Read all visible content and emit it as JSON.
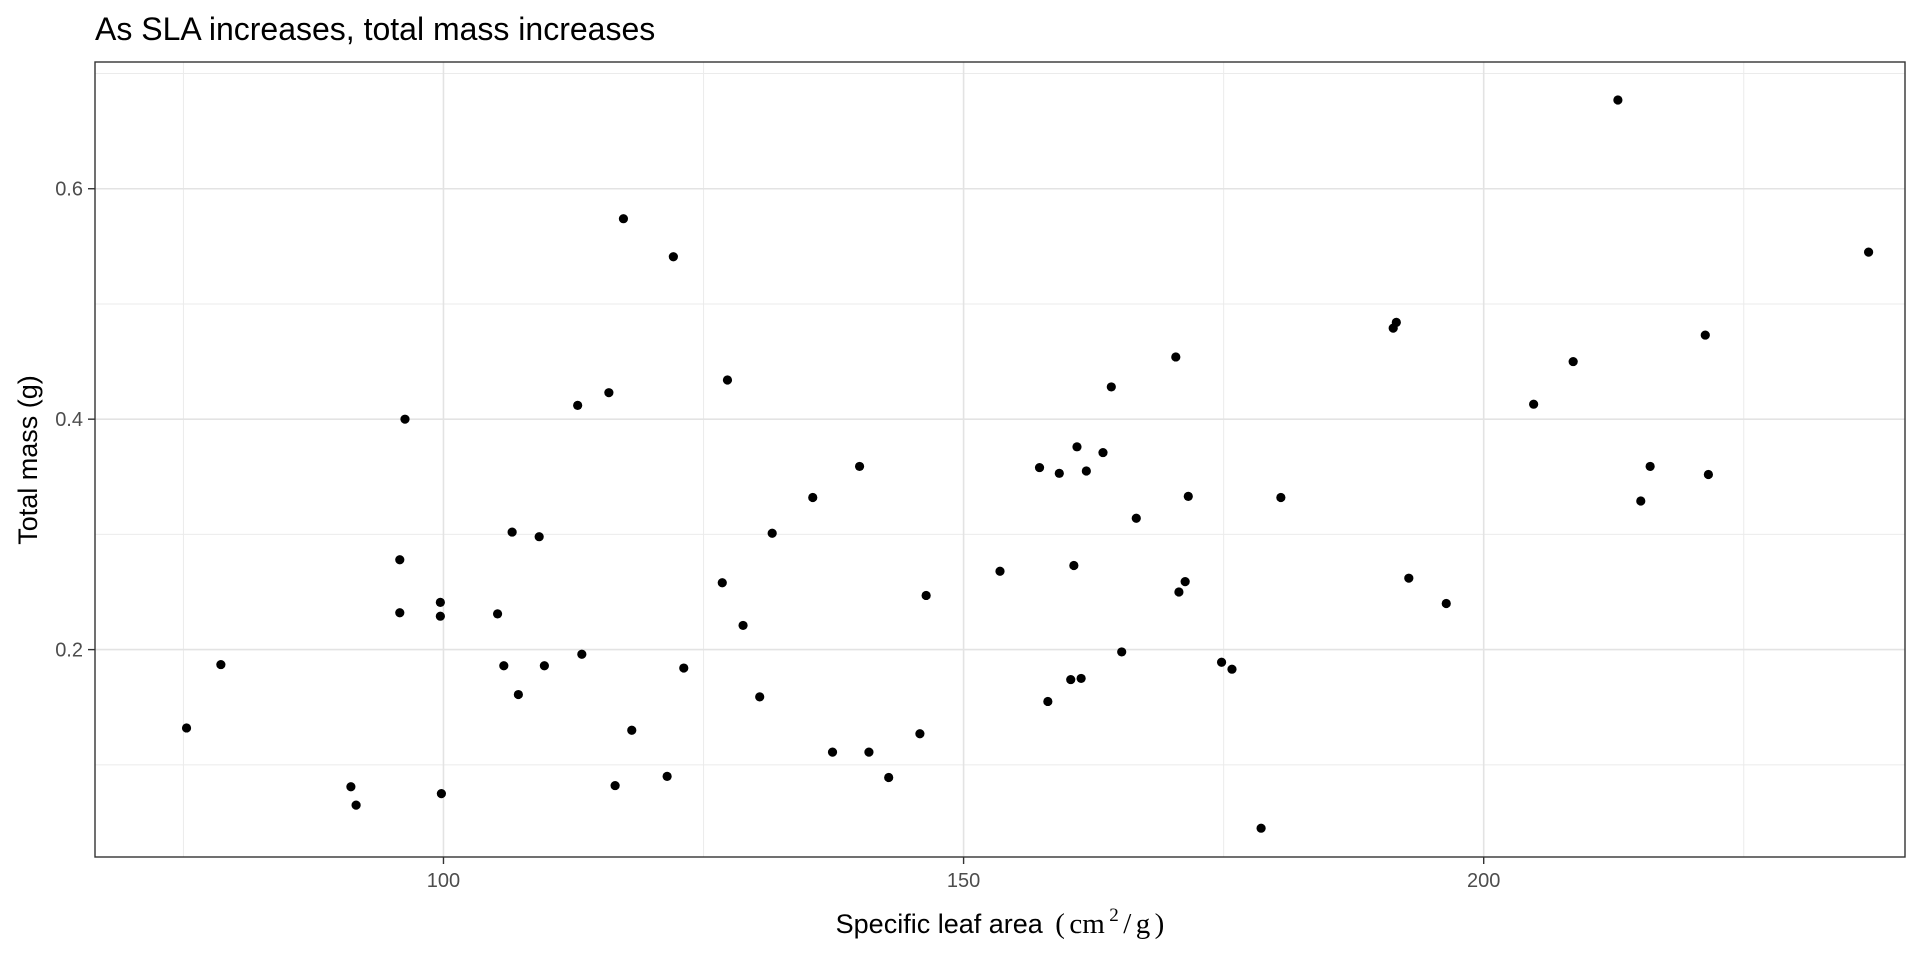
{
  "chart_data": {
    "type": "scatter",
    "title": "As SLA increases, total mass increases",
    "xlabel": "Specific leaf area",
    "xlabel_unit": {
      "open": "(",
      "base": "cm",
      "exponent": "2",
      "slash": "/",
      "denominator": "g",
      "close": ")"
    },
    "ylabel": "Total mass (g)",
    "xlim": [
      66.5,
      240.5
    ],
    "ylim": [
      0.02,
      0.71
    ],
    "x_ticks": [
      100,
      150,
      200
    ],
    "y_ticks": [
      0.2,
      0.4,
      0.6
    ],
    "x_tick_labels": [
      "100",
      "150",
      "200"
    ],
    "y_tick_labels": [
      "0.2",
      "0.4",
      "0.6"
    ],
    "grid": true,
    "legend": "none",
    "point_color": "#000000",
    "points": [
      {
        "x": 75.3,
        "y": 0.132
      },
      {
        "x": 78.6,
        "y": 0.187
      },
      {
        "x": 91.1,
        "y": 0.081
      },
      {
        "x": 91.6,
        "y": 0.065
      },
      {
        "x": 95.8,
        "y": 0.278
      },
      {
        "x": 95.8,
        "y": 0.232
      },
      {
        "x": 96.3,
        "y": 0.4
      },
      {
        "x": 99.7,
        "y": 0.241
      },
      {
        "x": 99.7,
        "y": 0.229
      },
      {
        "x": 99.8,
        "y": 0.075
      },
      {
        "x": 105.2,
        "y": 0.231
      },
      {
        "x": 105.8,
        "y": 0.186
      },
      {
        "x": 106.6,
        "y": 0.302
      },
      {
        "x": 107.2,
        "y": 0.161
      },
      {
        "x": 109.2,
        "y": 0.298
      },
      {
        "x": 109.7,
        "y": 0.186
      },
      {
        "x": 112.9,
        "y": 0.412
      },
      {
        "x": 113.3,
        "y": 0.196
      },
      {
        "x": 115.9,
        "y": 0.423
      },
      {
        "x": 116.5,
        "y": 0.082
      },
      {
        "x": 117.3,
        "y": 0.574
      },
      {
        "x": 118.1,
        "y": 0.13
      },
      {
        "x": 121.5,
        "y": 0.09
      },
      {
        "x": 122.1,
        "y": 0.541
      },
      {
        "x": 123.1,
        "y": 0.184
      },
      {
        "x": 126.8,
        "y": 0.258
      },
      {
        "x": 127.3,
        "y": 0.434
      },
      {
        "x": 128.8,
        "y": 0.221
      },
      {
        "x": 130.4,
        "y": 0.159
      },
      {
        "x": 131.6,
        "y": 0.301
      },
      {
        "x": 135.5,
        "y": 0.332
      },
      {
        "x": 137.4,
        "y": 0.111
      },
      {
        "x": 140.0,
        "y": 0.359
      },
      {
        "x": 140.9,
        "y": 0.111
      },
      {
        "x": 142.8,
        "y": 0.089
      },
      {
        "x": 145.8,
        "y": 0.127
      },
      {
        "x": 146.4,
        "y": 0.247
      },
      {
        "x": 153.5,
        "y": 0.268
      },
      {
        "x": 157.3,
        "y": 0.358
      },
      {
        "x": 158.1,
        "y": 0.155
      },
      {
        "x": 159.2,
        "y": 0.353
      },
      {
        "x": 160.3,
        "y": 0.174
      },
      {
        "x": 160.6,
        "y": 0.273
      },
      {
        "x": 160.9,
        "y": 0.376
      },
      {
        "x": 161.3,
        "y": 0.175
      },
      {
        "x": 161.8,
        "y": 0.355
      },
      {
        "x": 163.4,
        "y": 0.371
      },
      {
        "x": 164.2,
        "y": 0.428
      },
      {
        "x": 165.2,
        "y": 0.198
      },
      {
        "x": 166.6,
        "y": 0.314
      },
      {
        "x": 170.4,
        "y": 0.454
      },
      {
        "x": 170.7,
        "y": 0.25
      },
      {
        "x": 171.3,
        "y": 0.259
      },
      {
        "x": 171.6,
        "y": 0.333
      },
      {
        "x": 174.8,
        "y": 0.189
      },
      {
        "x": 175.8,
        "y": 0.183
      },
      {
        "x": 178.6,
        "y": 0.045
      },
      {
        "x": 180.5,
        "y": 0.332
      },
      {
        "x": 191.3,
        "y": 0.479
      },
      {
        "x": 191.6,
        "y": 0.484
      },
      {
        "x": 192.8,
        "y": 0.262
      },
      {
        "x": 196.4,
        "y": 0.24
      },
      {
        "x": 204.8,
        "y": 0.413
      },
      {
        "x": 208.6,
        "y": 0.45
      },
      {
        "x": 212.9,
        "y": 0.677
      },
      {
        "x": 215.1,
        "y": 0.329
      },
      {
        "x": 216.0,
        "y": 0.359
      },
      {
        "x": 221.3,
        "y": 0.473
      },
      {
        "x": 221.6,
        "y": 0.352
      },
      {
        "x": 237.0,
        "y": 0.545
      }
    ]
  }
}
